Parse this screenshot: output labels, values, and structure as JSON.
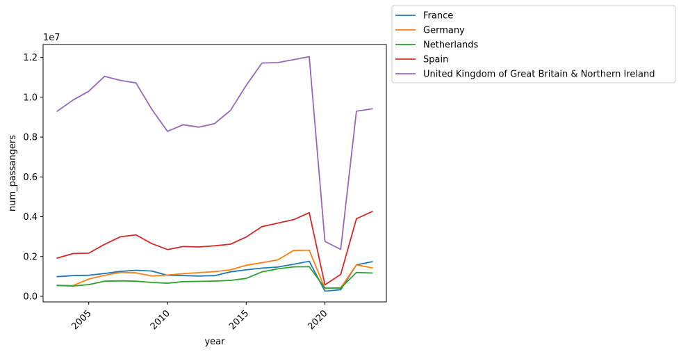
{
  "chart_data": {
    "type": "line",
    "xlabel": "year",
    "ylabel": "num_passangers",
    "y_offset_label": "1e7",
    "xlim": [
      2002.1,
      2023.9
    ],
    "ylim": [
      -280000,
      12650000
    ],
    "xticks": [
      2005,
      2010,
      2015,
      2020
    ],
    "xtick_labels": [
      "2005",
      "2010",
      "2015",
      "2020"
    ],
    "yticks": [
      0,
      2000000,
      4000000,
      6000000,
      8000000,
      10000000,
      12000000
    ],
    "ytick_labels": [
      "0.0",
      "0.2",
      "0.4",
      "0.6",
      "0.8",
      "1.0",
      "1.2"
    ],
    "grid": false,
    "legend_placement": "outside top-right",
    "x": [
      2003,
      2004,
      2005,
      2006,
      2007,
      2008,
      2009,
      2010,
      2011,
      2012,
      2013,
      2014,
      2015,
      2016,
      2017,
      2018,
      2019,
      2020,
      2021,
      2022,
      2023
    ],
    "series": [
      {
        "name": "France",
        "color": "#1f77b4",
        "values": [
          990000,
          1040000,
          1060000,
          1150000,
          1250000,
          1310000,
          1270000,
          1060000,
          1040000,
          1020000,
          1040000,
          1230000,
          1330000,
          1420000,
          1470000,
          1610000,
          1760000,
          260000,
          330000,
          1580000,
          1740000
        ]
      },
      {
        "name": "Germany",
        "color": "#ff7f0e",
        "values": [
          540000,
          540000,
          870000,
          1060000,
          1200000,
          1180000,
          1020000,
          1070000,
          1140000,
          1190000,
          1240000,
          1330000,
          1560000,
          1690000,
          1830000,
          2300000,
          2320000,
          390000,
          430000,
          1580000,
          1430000
        ]
      },
      {
        "name": "Netherlands",
        "color": "#2ca02c",
        "values": [
          550000,
          520000,
          590000,
          760000,
          780000,
          760000,
          700000,
          660000,
          740000,
          750000,
          770000,
          800000,
          900000,
          1230000,
          1380000,
          1480000,
          1490000,
          420000,
          410000,
          1200000,
          1170000
        ]
      },
      {
        "name": "Spain",
        "color": "#d62728",
        "values": [
          1920000,
          2150000,
          2170000,
          2610000,
          2990000,
          3090000,
          2650000,
          2350000,
          2500000,
          2480000,
          2540000,
          2620000,
          2980000,
          3500000,
          3680000,
          3850000,
          4200000,
          580000,
          1100000,
          3900000,
          4260000
        ]
      },
      {
        "name": "United Kingdom of Great Britain & Northern Ireland",
        "color": "#9467bd",
        "values": [
          9300000,
          9860000,
          10300000,
          11050000,
          10850000,
          10720000,
          9400000,
          8290000,
          8620000,
          8500000,
          8680000,
          9340000,
          10600000,
          11720000,
          11740000,
          11890000,
          12040000,
          2760000,
          2360000,
          9300000,
          9420000
        ]
      }
    ]
  }
}
